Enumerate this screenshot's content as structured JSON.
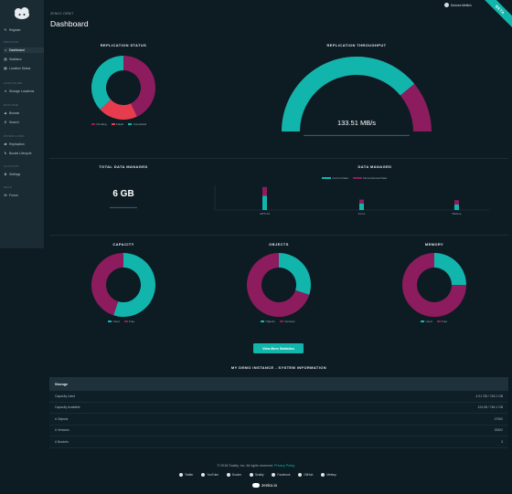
{
  "header": {
    "breadcrumb": "ZENKO ORBIT",
    "title": "Dashboard",
    "user_name": "Dolores Mellish",
    "ribbon": "BETA"
  },
  "sidebar": {
    "items": [
      {
        "label": "Register",
        "icon": "wrench-icon"
      }
    ],
    "sections": [
      {
        "label": "MONITOR",
        "items": [
          {
            "label": "Dashboard",
            "icon": "home-icon"
          },
          {
            "label": "Statistics",
            "icon": "chart-icon"
          },
          {
            "label": "Location Status",
            "icon": "server-icon"
          }
        ]
      },
      {
        "label": "CONFIGURE",
        "items": [
          {
            "label": "Storage Locations",
            "icon": "database-icon"
          }
        ]
      },
      {
        "label": "EXPLORE",
        "items": [
          {
            "label": "Browse",
            "icon": "folder-icon"
          },
          {
            "label": "Search",
            "icon": "search-icon"
          }
        ]
      },
      {
        "label": "WORKFLOWS",
        "items": [
          {
            "label": "Replication",
            "icon": "replicate-icon"
          },
          {
            "label": "Bucket Lifecycle",
            "icon": "lifecycle-icon"
          }
        ]
      },
      {
        "label": "ACCOUNT",
        "items": [
          {
            "label": "Settings",
            "icon": "gear-icon"
          }
        ]
      },
      {
        "label": "HELP",
        "items": [
          {
            "label": "Forum",
            "icon": "chat-icon"
          }
        ]
      }
    ]
  },
  "panels": {
    "replication_status": {
      "title": "REPLICATION STATUS",
      "legend": [
        "Pending",
        "Failed",
        "Completed"
      ]
    },
    "replication_throughput": {
      "title": "REPLICATION THROUGHPUT",
      "value": "133.51 MB/s"
    },
    "total_data": {
      "title": "TOTAL DATA MANAGED",
      "value": "6 GB"
    },
    "data_managed": {
      "title": "DATA MANAGED",
      "legend": [
        "Current Data",
        "Nonversioned Data"
      ]
    },
    "capacity": {
      "title": "CAPACITY",
      "legend": [
        "Used",
        "Free"
      ]
    },
    "objects": {
      "title": "OBJECTS",
      "legend": [
        "Objects",
        "Versions"
      ]
    },
    "memory": {
      "title": "MEMORY",
      "legend": [
        "Used",
        "Free"
      ]
    }
  },
  "button": {
    "label": "View More Statistics"
  },
  "sysinfo": {
    "title": "MY DEMO INSTANCE - SYSTEM INFORMATION",
    "header": "Storage",
    "rows": [
      {
        "label": "Capacity Used",
        "value": "4.01 GB / 748.1 GB"
      },
      {
        "label": "Capacity Available",
        "value": "124.08 / 748.1 GB"
      },
      {
        "label": "# Objects",
        "value": "27302"
      },
      {
        "label": "# Versions",
        "value": "25302"
      },
      {
        "label": "# Buckets",
        "value": "3"
      }
    ]
  },
  "footer": {
    "copyright": "© 2018 Scality, Inc. All rights reserved.",
    "privacy": "Privacy Policy",
    "links": [
      "Twitter",
      "YouTube",
      "Docker",
      "Scality",
      "Facebook",
      "GitHub",
      "Meetup"
    ],
    "brand": "zenko.io"
  },
  "colors": {
    "teal": "#12b5ac",
    "magenta": "#8c1c5e",
    "red": "#e63c4e",
    "bg": "#0d1b23",
    "sidebar": "#1b2b34"
  },
  "chart_data": [
    {
      "type": "pie",
      "name": "replication-status",
      "categories": [
        "Pending",
        "Failed",
        "Completed"
      ],
      "values": [
        43,
        20,
        37
      ]
    },
    {
      "type": "gauge",
      "name": "replication-throughput",
      "value": 133.51,
      "unit": "MB/s",
      "fraction": 0.78
    },
    {
      "type": "bar",
      "name": "data-managed",
      "categories": [
        "AWS S3",
        "Azure",
        "Backup"
      ],
      "series": [
        {
          "name": "Current Data",
          "values": [
            2.6,
            1.2,
            1.0
          ]
        },
        {
          "name": "Nonversioned Data",
          "values": [
            1.6,
            0.7,
            0.8
          ]
        }
      ]
    },
    {
      "type": "pie",
      "name": "capacity",
      "categories": [
        "Used",
        "Free"
      ],
      "values": [
        55,
        45
      ]
    },
    {
      "type": "pie",
      "name": "objects",
      "categories": [
        "Objects",
        "Versions"
      ],
      "values": [
        30,
        70
      ]
    },
    {
      "type": "pie",
      "name": "memory",
      "categories": [
        "Used",
        "Free"
      ],
      "values": [
        25,
        75
      ]
    }
  ]
}
